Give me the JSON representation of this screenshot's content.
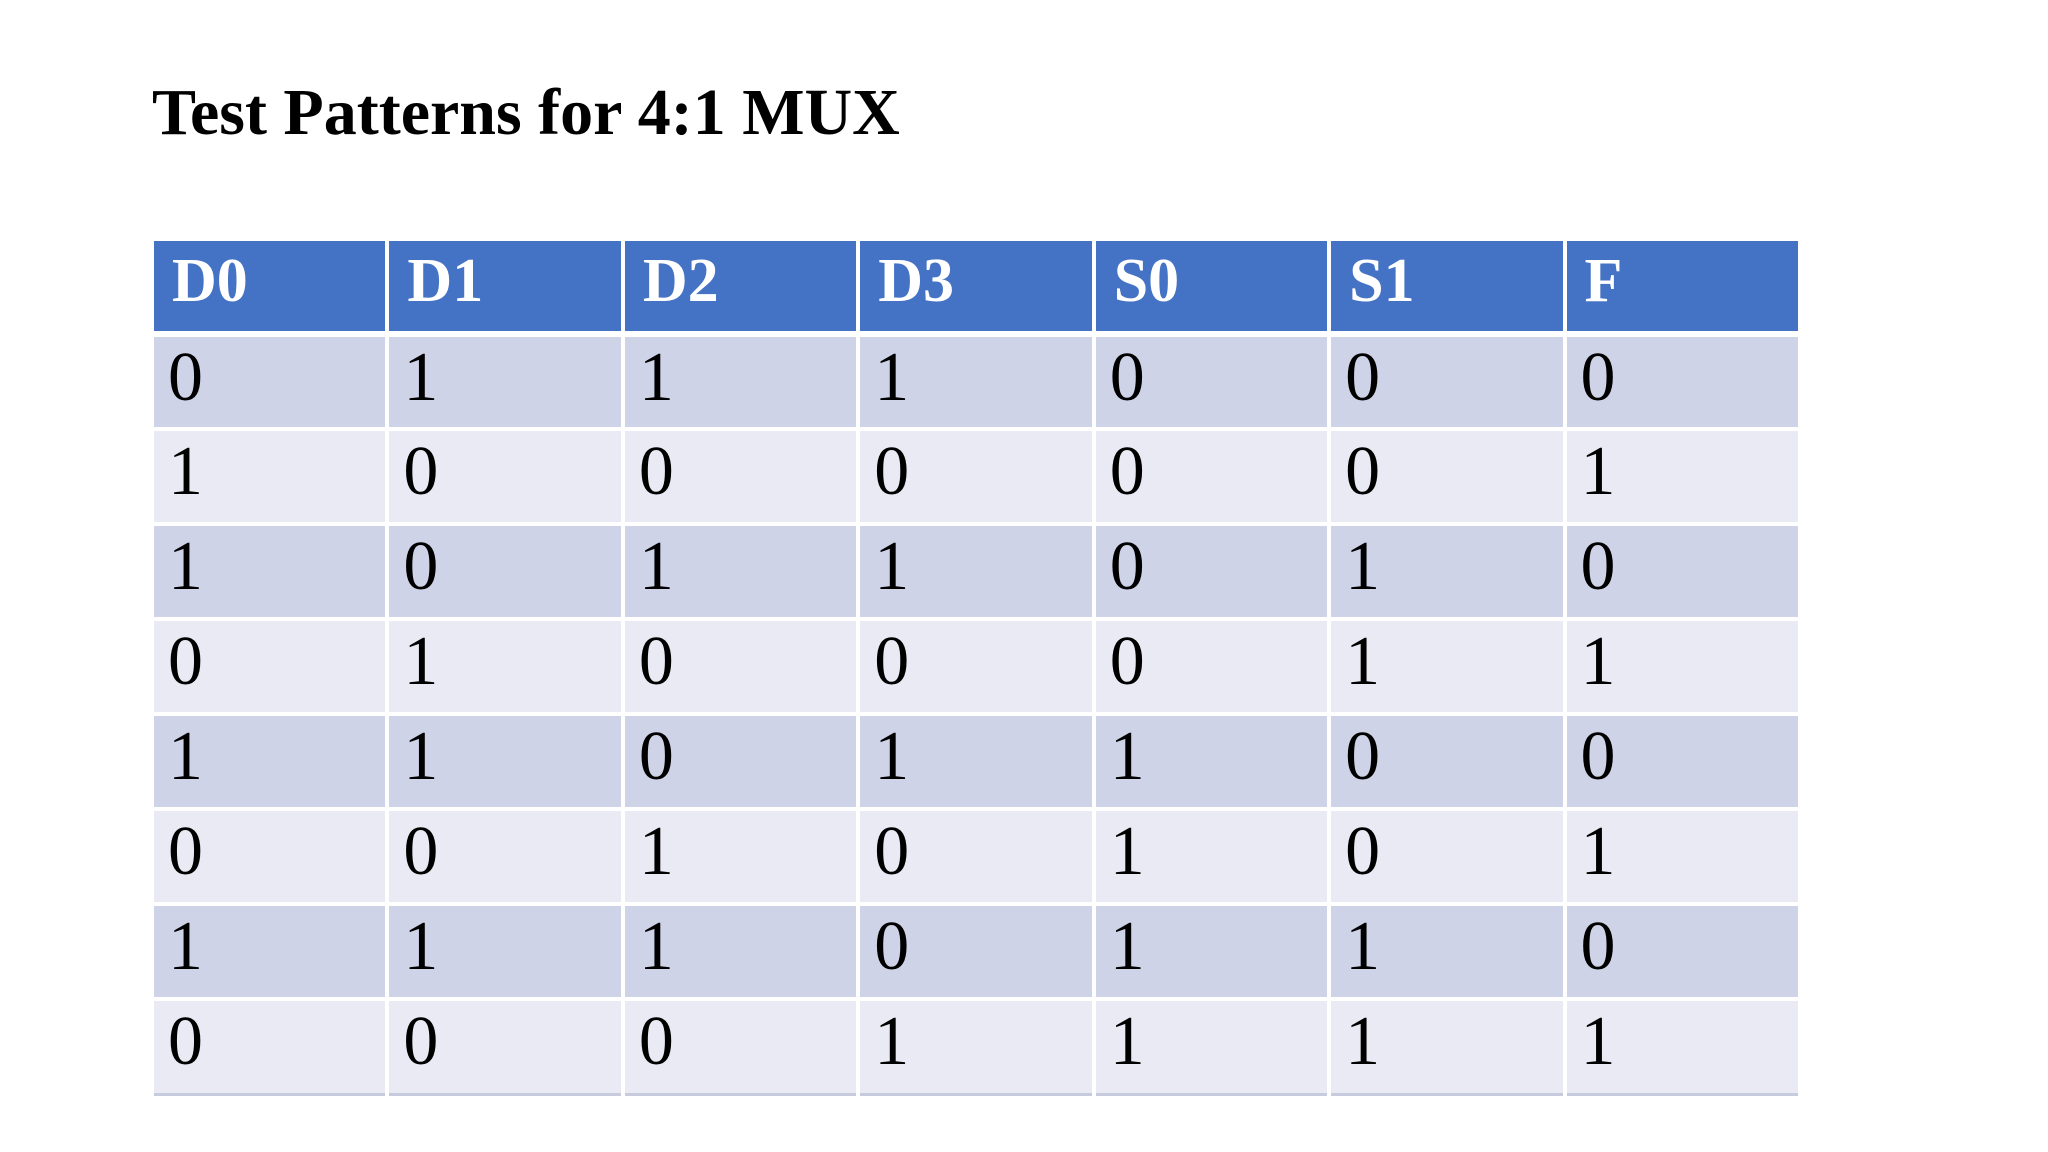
{
  "title": "Test Patterns for 4:1 MUX",
  "table": {
    "columns": [
      "D0",
      "D1",
      "D2",
      "D3",
      "S0",
      "S1",
      "F"
    ],
    "rows": [
      [
        "0",
        "1",
        "1",
        "1",
        "0",
        "0",
        "0"
      ],
      [
        "1",
        "0",
        "0",
        "0",
        "0",
        "0",
        "1"
      ],
      [
        "1",
        "0",
        "1",
        "1",
        "0",
        "1",
        "0"
      ],
      [
        "0",
        "1",
        "0",
        "0",
        "0",
        "1",
        "1"
      ],
      [
        "1",
        "1",
        "0",
        "1",
        "1",
        "0",
        "0"
      ],
      [
        "0",
        "0",
        "1",
        "0",
        "1",
        "0",
        "1"
      ],
      [
        "1",
        "1",
        "1",
        "0",
        "1",
        "1",
        "0"
      ],
      [
        "0",
        "0",
        "0",
        "1",
        "1",
        "1",
        "1"
      ]
    ]
  },
  "colors": {
    "page_background": "#FFFFFF",
    "header_bg": "#4472C4",
    "header_text": "#FFFFFF",
    "row_band_dark": "#CFD3E8",
    "row_band_light": "#E9EAF3",
    "cell_text": "#000000",
    "separator": "#FFFFFF",
    "table_bottom_border": "#C6CBDE",
    "title_color": "#000000"
  }
}
